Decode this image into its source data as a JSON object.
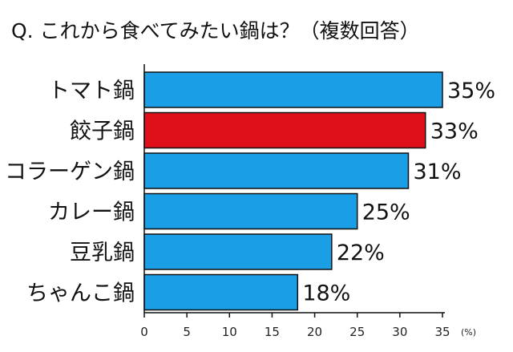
{
  "chart_data": {
    "type": "bar",
    "orientation": "horizontal",
    "title": "Q. これから食べてみたい鍋は？（複数回答）",
    "categories": [
      "トマト鍋",
      "餃子鍋",
      "コラーゲン鍋",
      "カレー鍋",
      "豆乳鍋",
      "ちゃんこ鍋"
    ],
    "values": [
      35,
      33,
      31,
      25,
      22,
      18
    ],
    "value_labels": [
      "35%",
      "33%",
      "31%",
      "25%",
      "22%",
      "18%"
    ],
    "xlim": [
      0,
      35
    ],
    "x_ticks": [
      "0",
      "5",
      "10",
      "15",
      "20",
      "25",
      "30",
      "35"
    ],
    "x_unit": "(%)",
    "grid": false,
    "colors": {
      "default_bar": "#1a9ee6",
      "highlight_bar": "#e0101a",
      "highlight_index": 1
    }
  }
}
